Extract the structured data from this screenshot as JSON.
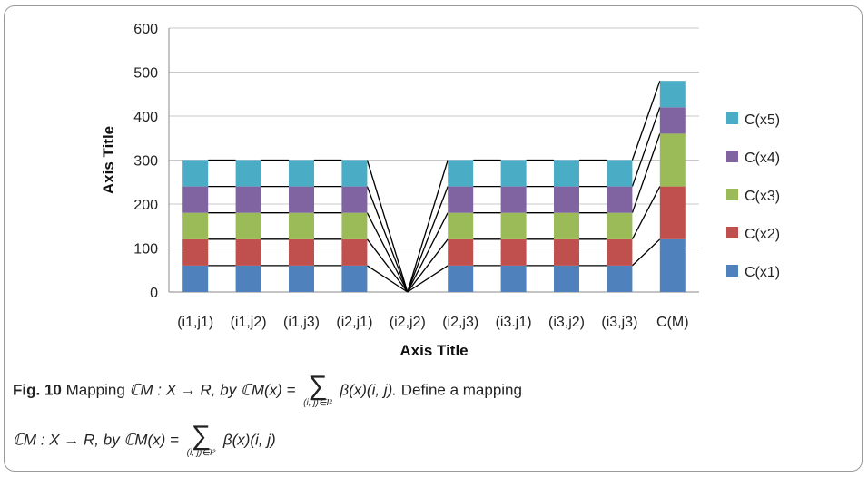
{
  "chart_data": {
    "type": "bar",
    "stacked": true,
    "categories": [
      "(i1,j1)",
      "(i1,j2)",
      "(i1,j3)",
      "(i2,j1)",
      "(i2,j2)",
      "(i2,j3)",
      "(i3.j1)",
      "(i3,j2)",
      "(i3,j3)",
      "C(M)"
    ],
    "series": [
      {
        "name": "C(x1)",
        "color": "#4f81bd",
        "values": [
          60,
          60,
          60,
          60,
          0,
          60,
          60,
          60,
          60,
          120
        ]
      },
      {
        "name": "C(x2)",
        "color": "#c0504d",
        "values": [
          60,
          60,
          60,
          60,
          0,
          60,
          60,
          60,
          60,
          120
        ]
      },
      {
        "name": "C(x3)",
        "color": "#9bbb59",
        "values": [
          60,
          60,
          60,
          60,
          0,
          60,
          60,
          60,
          60,
          120
        ]
      },
      {
        "name": "C(x4)",
        "color": "#8064a2",
        "values": [
          60,
          60,
          60,
          60,
          0,
          60,
          60,
          60,
          60,
          60
        ]
      },
      {
        "name": "C(x5)",
        "color": "#4bacc6",
        "values": [
          60,
          60,
          60,
          60,
          0,
          60,
          60,
          60,
          60,
          60
        ]
      }
    ],
    "xlabel": "Axis Title",
    "ylabel": "Axis Title",
    "ylim": [
      0,
      600
    ],
    "yticks": [
      0,
      100,
      200,
      300,
      400,
      500,
      600
    ],
    "grid": true,
    "legend_position": "right",
    "series_lines": true
  },
  "caption": {
    "fig_label": "Fig. 10",
    "line1_text": "Mapping ",
    "map1": "ℂM : X → R,",
    "by1": " by ℂM(x) = ",
    "sum_sub": "(i, j)∈I²",
    "term1": "β(x)(i, j).",
    "tail1": " Define a mapping",
    "map2": "ℂM : X → R,",
    "by2": "by ℂM(x) = ",
    "term2": "β(x)(i, j)"
  }
}
